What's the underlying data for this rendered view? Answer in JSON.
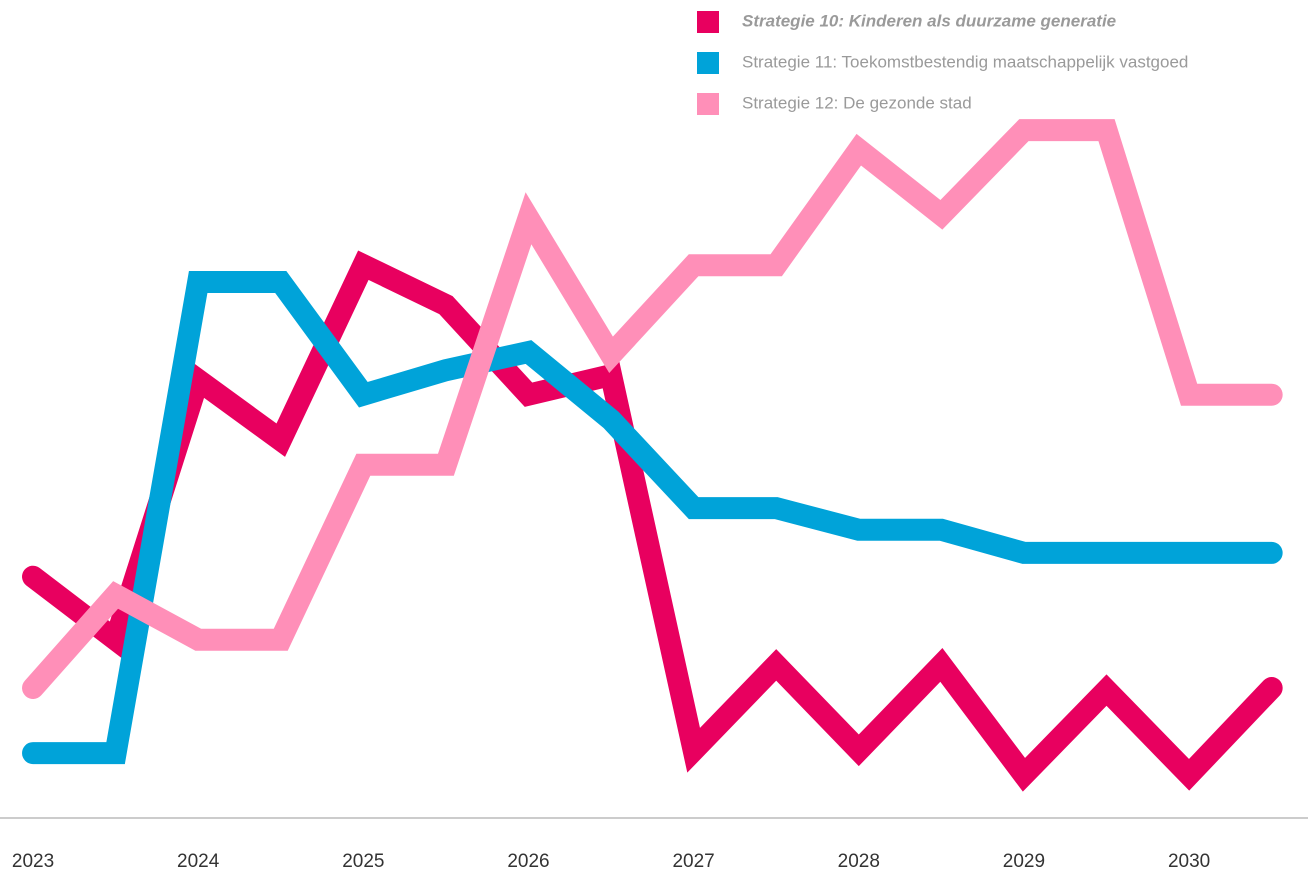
{
  "chart_data": {
    "type": "line",
    "x": [
      2023,
      2023.5,
      2024,
      2024.5,
      2025,
      2025.5,
      2026,
      2026.5,
      2027,
      2027.5,
      2028,
      2028.5,
      2029,
      2029.5,
      2030,
      2030.5
    ],
    "series": [
      {
        "name": "Strategie 10: Kinderen als duurzame generatie",
        "color": "#e8005f",
        "values": [
          31.9,
          22.9,
          60,
          51.4,
          76.4,
          70.7,
          57.9,
          60.7,
          7.1,
          19.3,
          7.1,
          19.3,
          3.6,
          15.7,
          3.6,
          16
        ]
      },
      {
        "name": "Strategie 11: Toekomstbestendig maatschappelijk vastgoed",
        "color": "#00a3d9",
        "values": [
          6.7,
          6.7,
          74,
          74,
          57.9,
          61.4,
          64,
          54.3,
          41.7,
          41.7,
          38.6,
          38.6,
          35.3,
          35.3,
          35.3,
          35.3
        ]
      },
      {
        "name": "Strategie 12: De gezonde stad",
        "color": "#ff8fb8",
        "values": [
          16,
          29.3,
          22.9,
          22.9,
          47.9,
          47.9,
          83.1,
          63.6,
          76.4,
          76.4,
          92.9,
          83.6,
          95.7,
          95.7,
          57.9,
          57.9
        ]
      }
    ],
    "xlim": [
      2022.8,
      2030.72
    ],
    "xticks": [
      2023,
      2024,
      2025,
      2026,
      2027,
      2028,
      2029,
      2030
    ],
    "ylim": [
      0,
      100
    ],
    "legend": "top-right"
  }
}
